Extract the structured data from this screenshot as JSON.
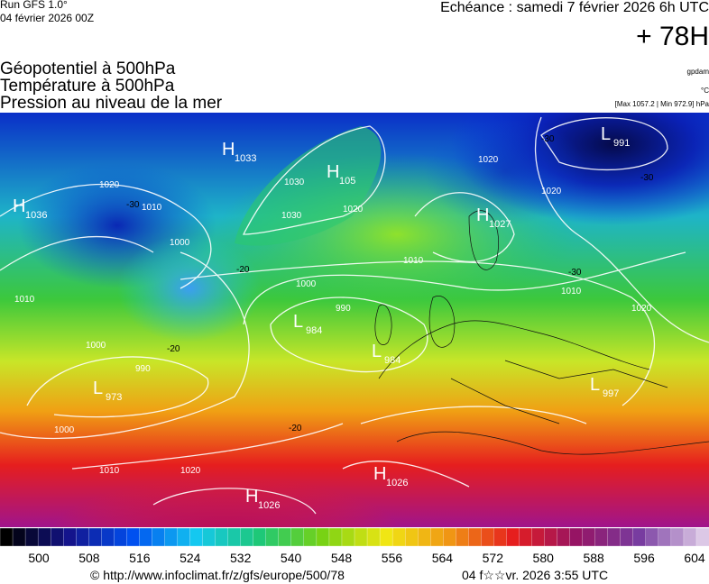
{
  "header": {
    "run": "Run GFS 1.0°",
    "date": "04 février 2026 00Z",
    "echeance": "Echéance : samedi 7 février 2026 6h UTC",
    "lead": "+ 78H"
  },
  "legend": {
    "lines": [
      "Géopotentiel à 500hPa",
      "Température à 500hPa",
      "Pression au niveau de la mer"
    ],
    "units": [
      "gpdam",
      "°C",
      "[Max 1057.2 | Min 972.9] hPa"
    ]
  },
  "centers": [
    {
      "letter": "H",
      "value": 1033
    },
    {
      "letter": "H",
      "value": 1036
    },
    {
      "letter": "H",
      "value": 105
    },
    {
      "letter": "H",
      "value": 1027
    },
    {
      "letter": "L",
      "value": 991
    },
    {
      "letter": "L",
      "value": 984
    },
    {
      "letter": "L",
      "value": 984
    },
    {
      "letter": "L",
      "value": 973
    },
    {
      "letter": "L",
      "value": 997
    },
    {
      "letter": "H",
      "value": 1026
    },
    {
      "letter": "H",
      "value": 1026
    }
  ],
  "isobar_labels": [
    1020,
    1010,
    1000,
    990,
    1030,
    1020,
    1010,
    1000,
    1010,
    1020,
    1010,
    1000,
    1020,
    1010,
    1020,
    1000,
    990,
    1030,
    1020
  ],
  "temperature_labels": [
    -30,
    -30,
    -30,
    -20,
    -20,
    -20,
    -30
  ],
  "colorbar": {
    "ticks": [
      500,
      508,
      516,
      524,
      532,
      540,
      548,
      556,
      564,
      572,
      580,
      588,
      596,
      604
    ]
  },
  "footer": {
    "url": "© http://www.infoclimat.fr/z/gfs/europe/500/78",
    "stamp": "04 f☆☆vr. 2026  3:55 UTC"
  }
}
